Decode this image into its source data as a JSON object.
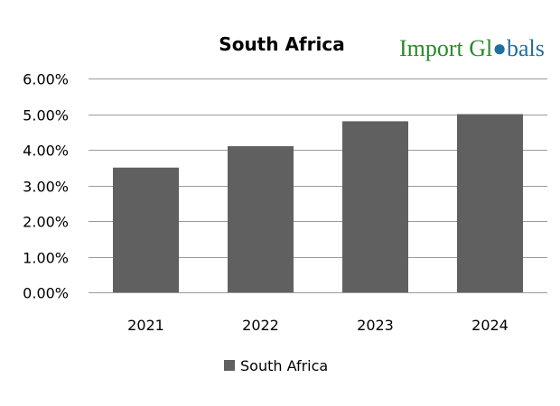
{
  "logo_text": "Import Globals",
  "chart_data": {
    "type": "bar",
    "title": "South Africa",
    "categories": [
      "2021",
      "2022",
      "2023",
      "2024"
    ],
    "series": [
      {
        "name": "South Africa",
        "values": [
          3.5,
          4.1,
          4.8,
          5.0
        ],
        "color": "#606060"
      }
    ],
    "ylim": [
      0,
      6
    ],
    "yticks": [
      "0.00%",
      "1.00%",
      "2.00%",
      "3.00%",
      "4.00%",
      "5.00%",
      "6.00%"
    ],
    "xlabel": "",
    "ylabel": "",
    "grid": true,
    "legend": "bottom",
    "colors": {
      "logo_import": "#2a8a2a",
      "logo_globals": "#1f6f9f"
    }
  }
}
